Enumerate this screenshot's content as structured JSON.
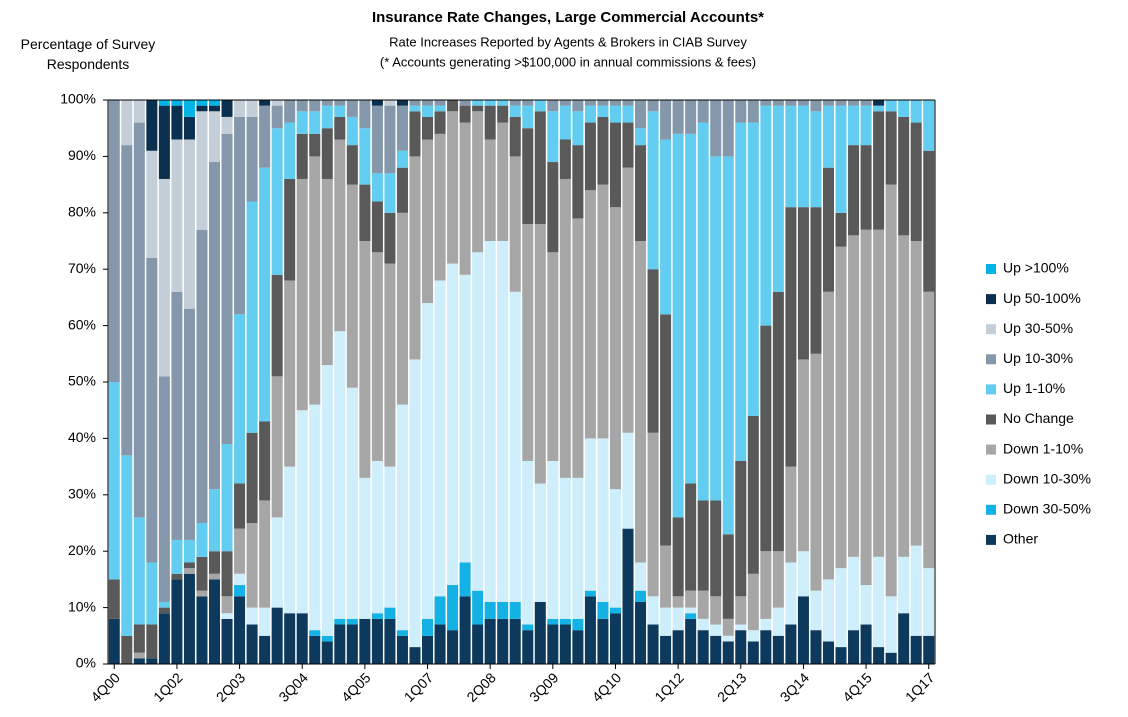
{
  "chart_data": {
    "type": "stacked_bar",
    "title": "Insurance Rate Changes, Large Commercial Accounts*",
    "subtitle": "Rate Increases Reported by Agents & Brokers in CIAB Survey",
    "note": "(* Accounts generating >$100,000 in annual commissions & fees)",
    "y_label": "Percentage of Survey Respondents",
    "categories": [
      "4Q00",
      null,
      null,
      null,
      null,
      "1Q02",
      null,
      null,
      null,
      null,
      "2Q03",
      null,
      null,
      null,
      null,
      "3Q04",
      null,
      null,
      null,
      null,
      "4Q05",
      null,
      null,
      null,
      null,
      "1Q07",
      null,
      null,
      null,
      null,
      "2Q08",
      null,
      null,
      null,
      null,
      "3Q09",
      null,
      null,
      null,
      null,
      "4Q10",
      null,
      null,
      null,
      null,
      "1Q12",
      null,
      null,
      null,
      null,
      "2Q13",
      null,
      null,
      null,
      null,
      "3Q14",
      null,
      null,
      null,
      null,
      "4Q15",
      null,
      null,
      null,
      null,
      "1Q17"
    ],
    "ylim": [
      0,
      100
    ],
    "yticks": [
      {
        "value": 0,
        "label": "0%"
      },
      {
        "value": 10,
        "label": "10%"
      },
      {
        "value": 20,
        "label": "20%"
      },
      {
        "value": 30,
        "label": "30%"
      },
      {
        "value": 40,
        "label": "40%"
      },
      {
        "value": 50,
        "label": "50%"
      },
      {
        "value": 60,
        "label": "60%"
      },
      {
        "value": 70,
        "label": "70%"
      },
      {
        "value": 80,
        "label": "80%"
      },
      {
        "value": 90,
        "label": "90%"
      },
      {
        "value": 100,
        "label": "100%"
      }
    ],
    "legend": "right",
    "series": [
      {
        "name": "Other",
        "color": "#0d3a5c",
        "values": [
          8,
          0,
          1,
          1,
          9,
          15,
          16,
          12,
          15,
          8,
          12,
          7,
          5,
          10,
          9,
          9,
          5,
          4,
          7,
          7,
          8,
          8,
          8,
          5,
          3,
          5,
          7,
          6,
          12,
          7,
          8,
          8,
          8,
          6,
          11,
          7,
          7,
          6,
          12,
          8,
          9,
          24,
          11,
          7,
          5,
          6,
          8,
          6,
          5,
          4,
          6,
          4,
          6,
          5,
          7,
          12,
          6,
          4,
          3,
          6,
          7,
          3,
          2,
          9,
          5,
          5
        ]
      },
      {
        "name": "Down 30-50%",
        "color": "#14b2e4",
        "values": [
          0,
          0,
          0,
          0,
          0,
          0,
          0,
          0,
          0,
          0,
          2,
          0,
          0,
          0,
          0,
          0,
          1,
          1,
          1,
          1,
          0,
          1,
          2,
          1,
          0,
          3,
          5,
          8,
          6,
          6,
          3,
          3,
          3,
          1,
          0,
          1,
          1,
          2,
          1,
          3,
          1,
          0,
          2,
          0,
          0,
          0,
          1,
          0,
          0,
          0,
          0,
          0,
          0,
          0,
          0,
          0,
          0,
          0,
          0,
          0,
          0,
          0,
          0,
          0,
          0,
          0
        ]
      },
      {
        "name": "Down 10-30%",
        "color": "#cdeefa",
        "values": [
          0,
          0,
          0,
          0,
          0,
          0,
          0,
          0,
          0,
          1,
          2,
          3,
          5,
          16,
          26,
          36,
          40,
          48,
          51,
          41,
          25,
          27,
          25,
          40,
          51,
          56,
          56,
          57,
          51,
          60,
          64,
          64,
          55,
          29,
          21,
          28,
          25,
          25,
          27,
          29,
          21,
          17,
          5,
          5,
          5,
          4,
          1,
          2,
          2,
          1,
          1,
          2,
          2,
          5,
          11,
          8,
          7,
          11,
          14,
          13,
          7,
          16,
          10,
          10,
          16,
          12
        ]
      },
      {
        "name": "Down 1-10%",
        "color": "#a6a6a6",
        "values": [
          0,
          0,
          1,
          0,
          0,
          0,
          1,
          1,
          1,
          3,
          8,
          15,
          19,
          25,
          33,
          41,
          44,
          33,
          34,
          36,
          42,
          37,
          36,
          34,
          36,
          29,
          26,
          27,
          27,
          25,
          18,
          21,
          24,
          42,
          46,
          37,
          53,
          46,
          44,
          45,
          50,
          47,
          57,
          29,
          11,
          2,
          3,
          5,
          5,
          3,
          5,
          10,
          12,
          10,
          17,
          34,
          42,
          51,
          57,
          57,
          63,
          58,
          73,
          57,
          54,
          49
        ]
      },
      {
        "name": "No Change",
        "color": "#595959",
        "values": [
          7,
          5,
          5,
          6,
          1,
          1,
          1,
          6,
          4,
          8,
          8,
          16,
          14,
          18,
          18,
          8,
          4,
          9,
          4,
          7,
          10,
          9,
          9,
          8,
          8,
          4,
          4,
          2,
          3,
          1,
          6,
          3,
          7,
          17,
          20,
          16,
          7,
          13,
          12,
          12,
          15,
          8,
          17,
          29,
          41,
          14,
          19,
          16,
          17,
          15,
          24,
          28,
          40,
          46,
          46,
          27,
          26,
          22,
          6,
          16,
          15,
          21,
          13,
          21,
          21,
          25
        ]
      },
      {
        "name": "Up 1-10%",
        "color": "#62cdf0",
        "values": [
          35,
          32,
          19,
          11,
          1,
          6,
          4,
          6,
          11,
          19,
          30,
          41,
          45,
          26,
          10,
          4,
          4,
          4,
          2,
          5,
          10,
          5,
          7,
          3,
          1,
          2,
          1,
          0,
          0,
          1,
          1,
          1,
          2,
          4,
          2,
          9,
          6,
          6,
          3,
          2,
          3,
          3,
          3,
          28,
          31,
          68,
          62,
          67,
          61,
          67,
          60,
          52,
          39,
          33,
          18,
          18,
          17,
          11,
          19,
          7,
          7,
          1,
          2,
          3,
          4,
          9
        ]
      },
      {
        "name": "Up 10-30%",
        "color": "#8597aa",
        "values": [
          50,
          55,
          70,
          54,
          40,
          44,
          41,
          52,
          58,
          55,
          35,
          15,
          11,
          4,
          4,
          2,
          2,
          1,
          1,
          3,
          5,
          12,
          12,
          8,
          1,
          1,
          1,
          0,
          1,
          0,
          0,
          0,
          1,
          1,
          0,
          2,
          1,
          2,
          1,
          1,
          1,
          1,
          5,
          2,
          7,
          6,
          6,
          4,
          10,
          10,
          4,
          4,
          1,
          1,
          1,
          1,
          2,
          1,
          1,
          1,
          1,
          0,
          0,
          0,
          0,
          0
        ]
      },
      {
        "name": "Up 30-50%",
        "color": "#c3ced8",
        "values": [
          0,
          8,
          4,
          19,
          35,
          27,
          30,
          21,
          9,
          3,
          3,
          3,
          0,
          1,
          0,
          0,
          0,
          0,
          0,
          0,
          0,
          0,
          1,
          0,
          0,
          0,
          0,
          0,
          0,
          0,
          0,
          0,
          0,
          0,
          0,
          0,
          0,
          0,
          0,
          0,
          0,
          0,
          0,
          0,
          0,
          0,
          0,
          0,
          0,
          0,
          0,
          0,
          0,
          0,
          0,
          0,
          0,
          0,
          0,
          0,
          0,
          0,
          0,
          0,
          0,
          0
        ]
      },
      {
        "name": "Up 50-100%",
        "color": "#0a2f4f",
        "values": [
          0,
          0,
          0,
          9,
          13,
          6,
          4,
          1,
          1,
          3,
          0,
          0,
          1,
          0,
          0,
          0,
          0,
          0,
          0,
          0,
          0,
          1,
          0,
          1,
          0,
          0,
          0,
          0,
          0,
          0,
          0,
          0,
          0,
          0,
          0,
          0,
          0,
          0,
          0,
          0,
          0,
          0,
          0,
          0,
          0,
          0,
          0,
          0,
          0,
          0,
          0,
          0,
          0,
          0,
          0,
          0,
          0,
          0,
          0,
          0,
          0,
          1,
          0,
          0,
          0,
          0
        ]
      },
      {
        "name": "Up >100%",
        "color": "#00b4e6",
        "values": [
          0,
          0,
          0,
          0,
          1,
          1,
          3,
          1,
          1,
          0,
          0,
          0,
          0,
          0,
          0,
          0,
          0,
          0,
          0,
          0,
          0,
          0,
          0,
          0,
          0,
          0,
          0,
          0,
          0,
          0,
          0,
          0,
          0,
          0,
          0,
          0,
          0,
          0,
          0,
          0,
          0,
          0,
          0,
          0,
          0,
          0,
          0,
          0,
          0,
          0,
          0,
          0,
          0,
          0,
          0,
          0,
          0,
          0,
          0,
          0,
          0,
          0,
          0,
          0,
          0,
          0
        ]
      }
    ]
  }
}
